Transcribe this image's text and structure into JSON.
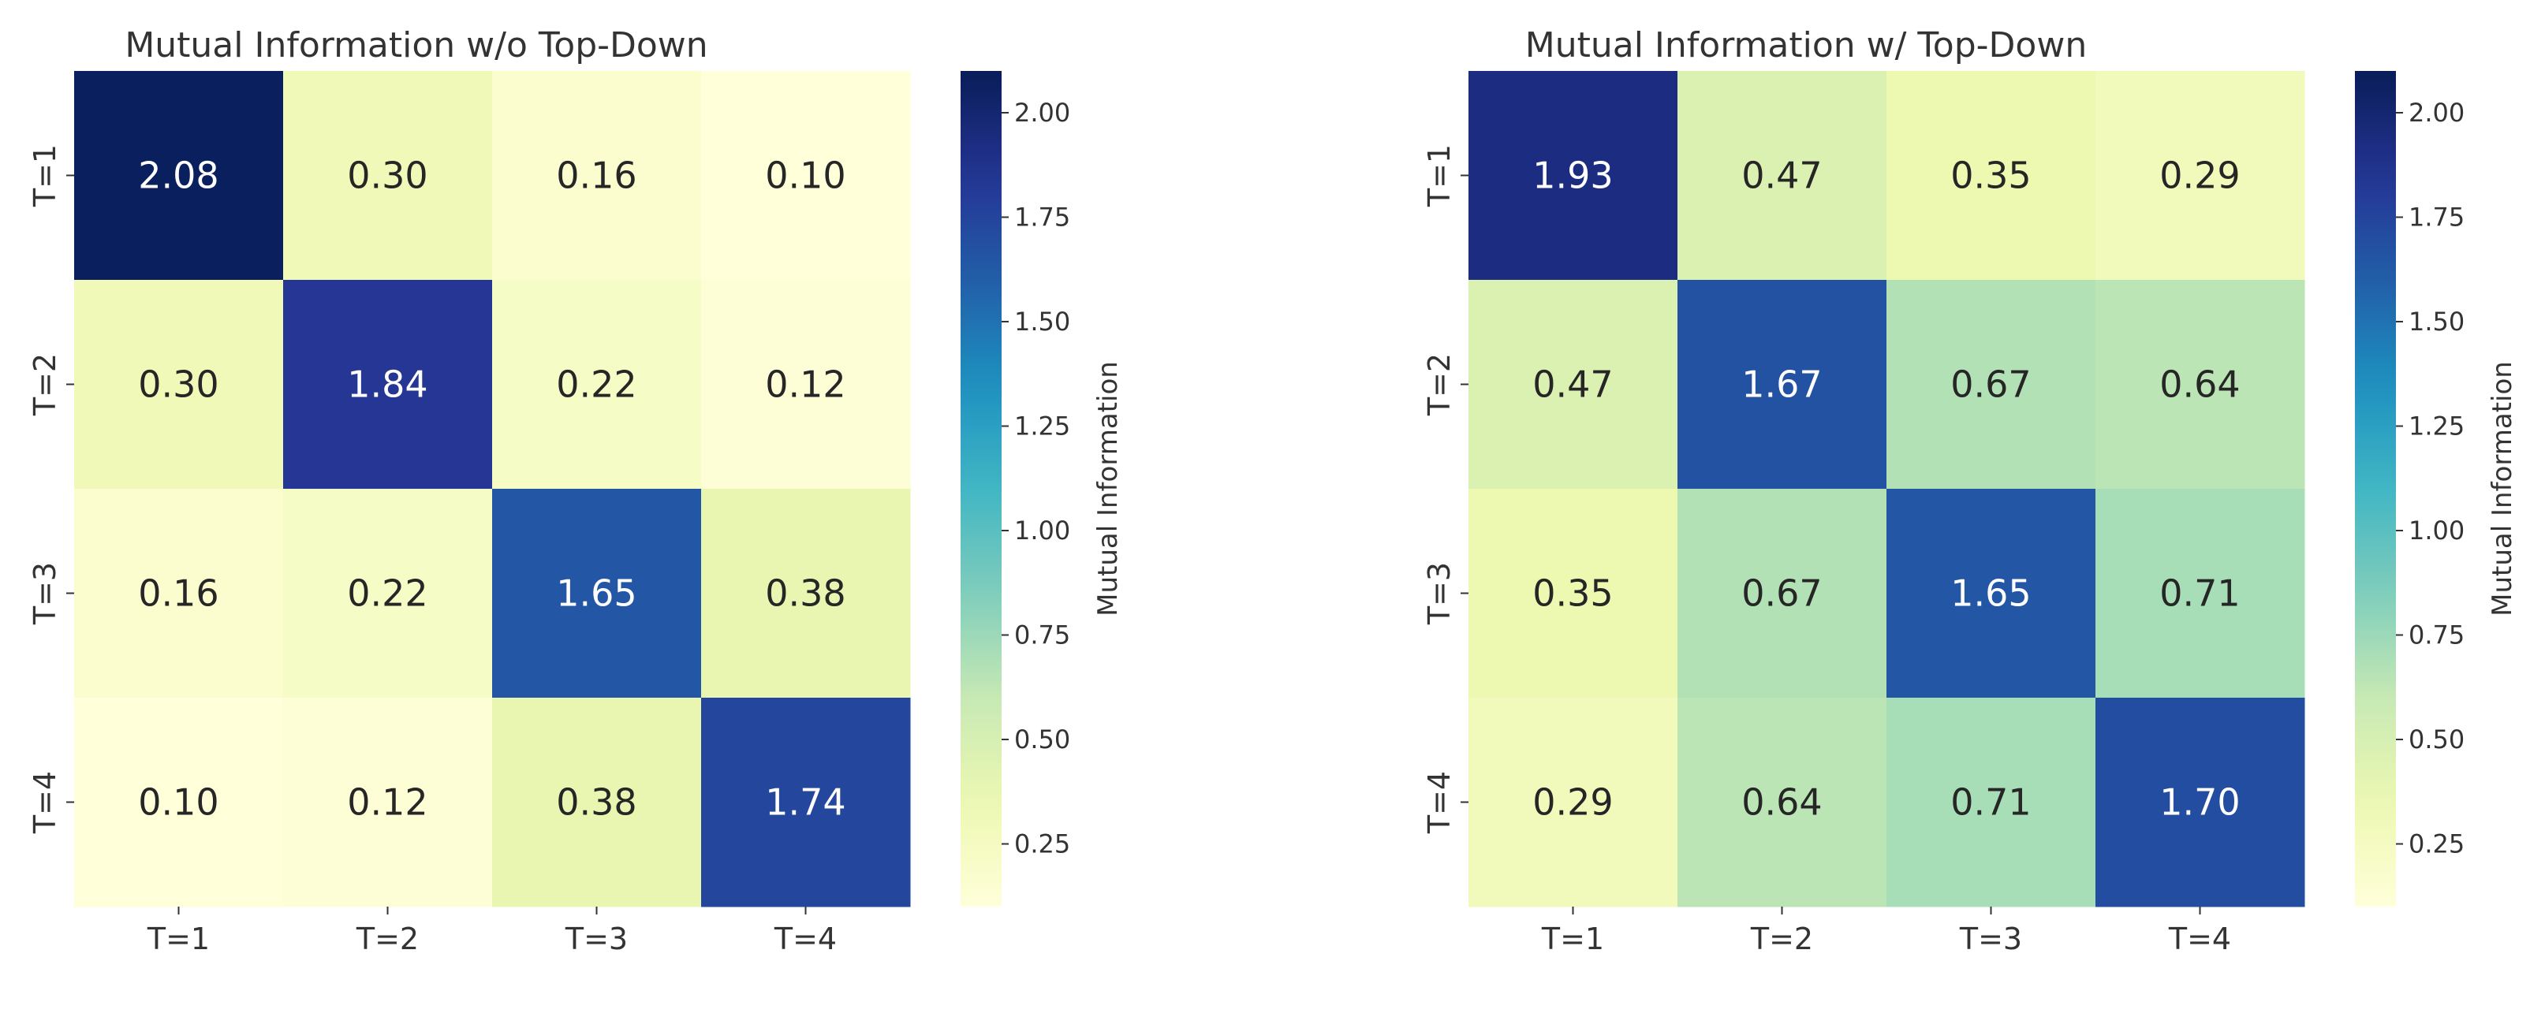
{
  "chart_data": [
    {
      "type": "heatmap",
      "title": "Mutual Information w/o Top-Down",
      "x_categories": [
        "T=1",
        "T=2",
        "T=3",
        "T=4"
      ],
      "y_categories": [
        "T=1",
        "T=2",
        "T=3",
        "T=4"
      ],
      "values": [
        [
          2.08,
          0.3,
          0.16,
          0.1
        ],
        [
          0.3,
          1.84,
          0.22,
          0.12
        ],
        [
          0.16,
          0.22,
          1.65,
          0.38
        ],
        [
          0.1,
          0.12,
          0.38,
          1.74
        ]
      ],
      "value_labels": [
        [
          "2.08",
          "0.30",
          "0.16",
          "0.10"
        ],
        [
          "0.30",
          "1.84",
          "0.22",
          "0.12"
        ],
        [
          "0.16",
          "0.22",
          "1.65",
          "0.38"
        ],
        [
          "0.10",
          "0.12",
          "0.38",
          "1.74"
        ]
      ],
      "colormap": "YlGnBu",
      "colorbar": {
        "label": "Mutual Information",
        "range": [
          0.1,
          2.1
        ],
        "ticks": [
          0.25,
          0.5,
          0.75,
          1.0,
          1.25,
          1.5,
          1.75,
          2.0
        ],
        "tick_labels": [
          "0.25",
          "0.50",
          "0.75",
          "1.00",
          "1.25",
          "1.50",
          "1.75",
          "2.00"
        ]
      }
    },
    {
      "type": "heatmap",
      "title": "Mutual Information w/ Top-Down",
      "x_categories": [
        "T=1",
        "T=2",
        "T=3",
        "T=4"
      ],
      "y_categories": [
        "T=1",
        "T=2",
        "T=3",
        "T=4"
      ],
      "values": [
        [
          1.93,
          0.47,
          0.35,
          0.29
        ],
        [
          0.47,
          1.67,
          0.67,
          0.64
        ],
        [
          0.35,
          0.67,
          1.65,
          0.71
        ],
        [
          0.29,
          0.64,
          0.71,
          1.7
        ]
      ],
      "value_labels": [
        [
          "1.93",
          "0.47",
          "0.35",
          "0.29"
        ],
        [
          "0.47",
          "1.67",
          "0.67",
          "0.64"
        ],
        [
          "0.35",
          "0.67",
          "1.65",
          "0.71"
        ],
        [
          "0.29",
          "0.64",
          "0.71",
          "1.70"
        ]
      ],
      "colormap": "YlGnBu",
      "colorbar": {
        "label": "Mutual Information",
        "range": [
          0.1,
          2.1
        ],
        "ticks": [
          0.25,
          0.5,
          0.75,
          1.0,
          1.25,
          1.5,
          1.75,
          2.0
        ],
        "tick_labels": [
          "0.25",
          "0.50",
          "0.75",
          "1.00",
          "1.25",
          "1.50",
          "1.75",
          "2.00"
        ]
      }
    }
  ]
}
